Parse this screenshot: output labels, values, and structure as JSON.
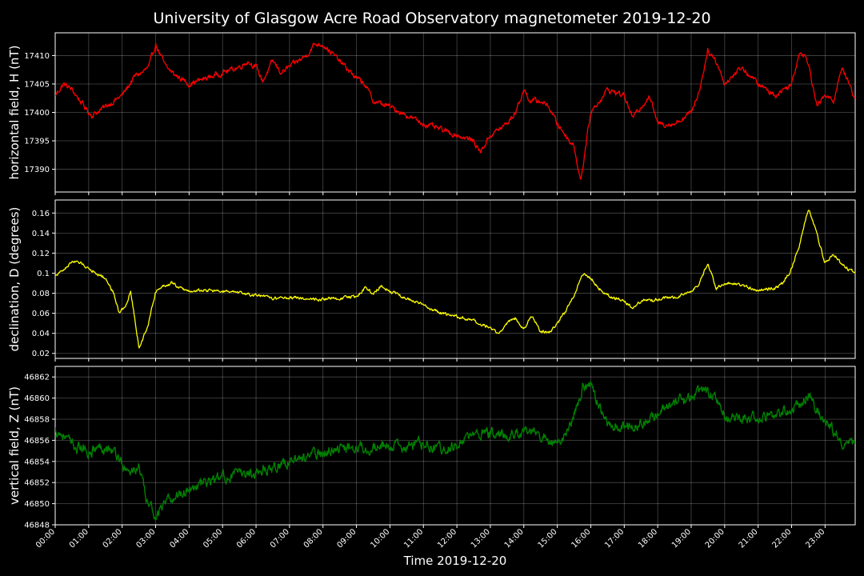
{
  "title": "University of Glasgow Acre Road Observatory magnetometer 2019-12-20",
  "xlabel": "Time 2019-12-20",
  "chart_data": [
    {
      "type": "line",
      "ylabel": "horizontal field, H (nT)",
      "ylim": [
        17386,
        17414
      ],
      "yticks": [
        17390,
        17395,
        17400,
        17405,
        17410
      ],
      "xlim": [
        0,
        23.9
      ],
      "grid": true,
      "series": [
        {
          "color": "#ff0000",
          "noise": 0.55,
          "x": [
            0,
            0.25,
            0.5,
            0.75,
            1,
            1.1,
            1.5,
            2,
            2.4,
            2.6,
            2.8,
            3,
            3.3,
            3.6,
            3.75,
            4,
            4.5,
            5,
            5.5,
            5.75,
            6,
            6.2,
            6.5,
            6.75,
            7,
            7.5,
            7.75,
            8,
            8.5,
            9,
            9.25,
            9.5,
            10,
            10.5,
            11,
            11.5,
            12,
            12.5,
            12.7,
            13,
            13.5,
            13.75,
            14,
            14.2,
            14.5,
            14.75,
            15,
            15.25,
            15.5,
            15.7,
            16,
            16.5,
            17,
            17.25,
            17.5,
            17.75,
            18,
            18.5,
            19,
            19.25,
            19.5,
            19.75,
            20,
            20.5,
            21,
            21.5,
            22,
            22.25,
            22.5,
            22.75,
            23,
            23.25,
            23.5,
            23.9
          ],
          "values": [
            17403,
            17405,
            17404,
            17402,
            17400,
            17399.5,
            17401,
            17403,
            17406.5,
            17407,
            17408,
            17412,
            17408,
            17406.5,
            17406,
            17405,
            17406,
            17407,
            17408,
            17409,
            17408,
            17405.5,
            17409,
            17407,
            17408,
            17410,
            17412,
            17412,
            17409,
            17406,
            17405,
            17402,
            17401,
            17399.5,
            17398,
            17397,
            17396,
            17395,
            17393,
            17396,
            17398,
            17400,
            17404,
            17402,
            17402,
            17401,
            17398,
            17396,
            17394,
            17388,
            17400,
            17404,
            17403,
            17399,
            17401,
            17403,
            17398,
            17398,
            17400,
            17404,
            17411,
            17409,
            17405,
            17408,
            17405,
            17403,
            17405,
            17411,
            17409,
            17401,
            17403,
            17402,
            17408,
            17402.5
          ]
        }
      ]
    },
    {
      "type": "line",
      "ylabel": "declination, D (degrees)",
      "ylim": [
        0.015,
        0.173
      ],
      "yticks": [
        0.02,
        0.04,
        0.06,
        0.08,
        0.1,
        0.12,
        0.14,
        0.16
      ],
      "xlim": [
        0,
        23.9
      ],
      "grid": true,
      "series": [
        {
          "color": "#ffff00",
          "noise": 0.0018,
          "x": [
            0,
            0.25,
            0.5,
            0.75,
            1,
            1.25,
            1.5,
            1.75,
            1.9,
            2.1,
            2.25,
            2.4,
            2.5,
            2.75,
            3,
            3.25,
            3.5,
            3.75,
            4,
            4.5,
            5,
            5.5,
            6,
            6.5,
            7,
            7.5,
            8,
            8.5,
            9,
            9.25,
            9.5,
            9.75,
            10,
            10.5,
            11,
            11.5,
            12,
            12.5,
            12.75,
            13,
            13.25,
            13.5,
            13.75,
            14,
            14.25,
            14.5,
            14.75,
            15,
            15.25,
            15.5,
            15.75,
            16,
            16.25,
            16.5,
            17,
            17.25,
            17.5,
            18,
            18.5,
            19,
            19.25,
            19.5,
            19.75,
            20,
            20.5,
            21,
            21.5,
            21.75,
            22,
            22.25,
            22.5,
            22.75,
            23,
            23.25,
            23.5,
            23.9
          ],
          "values": [
            0.098,
            0.103,
            0.112,
            0.11,
            0.105,
            0.1,
            0.095,
            0.08,
            0.062,
            0.065,
            0.082,
            0.05,
            0.025,
            0.045,
            0.082,
            0.088,
            0.09,
            0.085,
            0.082,
            0.083,
            0.082,
            0.08,
            0.078,
            0.075,
            0.076,
            0.075,
            0.074,
            0.075,
            0.077,
            0.085,
            0.08,
            0.088,
            0.082,
            0.075,
            0.068,
            0.06,
            0.057,
            0.052,
            0.048,
            0.045,
            0.04,
            0.05,
            0.056,
            0.045,
            0.058,
            0.042,
            0.04,
            0.05,
            0.062,
            0.078,
            0.1,
            0.095,
            0.085,
            0.078,
            0.072,
            0.065,
            0.072,
            0.074,
            0.076,
            0.082,
            0.09,
            0.11,
            0.085,
            0.09,
            0.088,
            0.083,
            0.085,
            0.09,
            0.105,
            0.13,
            0.165,
            0.14,
            0.11,
            0.12,
            0.108,
            0.1
          ]
        }
      ]
    },
    {
      "type": "line",
      "ylabel": "vertical field, Z (nT)",
      "ylim": [
        46848,
        46863
      ],
      "yticks": [
        46848,
        46850,
        46852,
        46854,
        46856,
        46858,
        46860,
        46862
      ],
      "xlim": [
        0,
        23.9
      ],
      "grid": true,
      "series": [
        {
          "color": "#008000",
          "noise": 0.6,
          "x": [
            0,
            0.25,
            0.5,
            1,
            1.5,
            1.9,
            2.1,
            2.25,
            2.5,
            2.75,
            3,
            3.5,
            4,
            4.5,
            5,
            5.5,
            6,
            6.5,
            7,
            7.5,
            8,
            8.5,
            9,
            9.5,
            10,
            10.5,
            11,
            11.5,
            12,
            12.5,
            13,
            13.5,
            14,
            14.5,
            15,
            15.25,
            15.5,
            15.75,
            16,
            16.25,
            16.5,
            17,
            17.5,
            18,
            18.5,
            19,
            19.25,
            19.5,
            19.75,
            20,
            20.5,
            21,
            21.5,
            22,
            22.25,
            22.5,
            22.75,
            23,
            23.25,
            23.5,
            23.9
          ],
          "values": [
            46857,
            46856.5,
            46855.5,
            46855,
            46855.5,
            46854.5,
            46853,
            46853,
            46853.5,
            46850,
            46849,
            46850.5,
            46851.5,
            46852,
            46852.5,
            46852.8,
            46853,
            46853.5,
            46854,
            46854.5,
            46854.8,
            46855.2,
            46855.5,
            46855.3,
            46855.5,
            46855.3,
            46855.8,
            46855.2,
            46855.5,
            46856.5,
            46856.7,
            46856.5,
            46856.8,
            46856.5,
            46855.5,
            46856.5,
            46858.5,
            46861,
            46861.5,
            46859,
            46857.5,
            46857.5,
            46857.5,
            46858.5,
            46859.5,
            46860,
            46860.5,
            46860.5,
            46860,
            46858.5,
            46858,
            46858,
            46858.5,
            46859,
            46859.5,
            46860.5,
            46859,
            46858,
            46857,
            46856,
            46855.5
          ]
        }
      ]
    }
  ],
  "xticks": [
    "00:00",
    "01:00",
    "02:00",
    "03:00",
    "04:00",
    "05:00",
    "06:00",
    "07:00",
    "08:00",
    "09:00",
    "10:00",
    "11:00",
    "12:00",
    "13:00",
    "14:00",
    "15:00",
    "16:00",
    "17:00",
    "18:00",
    "19:00",
    "20:00",
    "21:00",
    "22:00",
    "23:00"
  ]
}
